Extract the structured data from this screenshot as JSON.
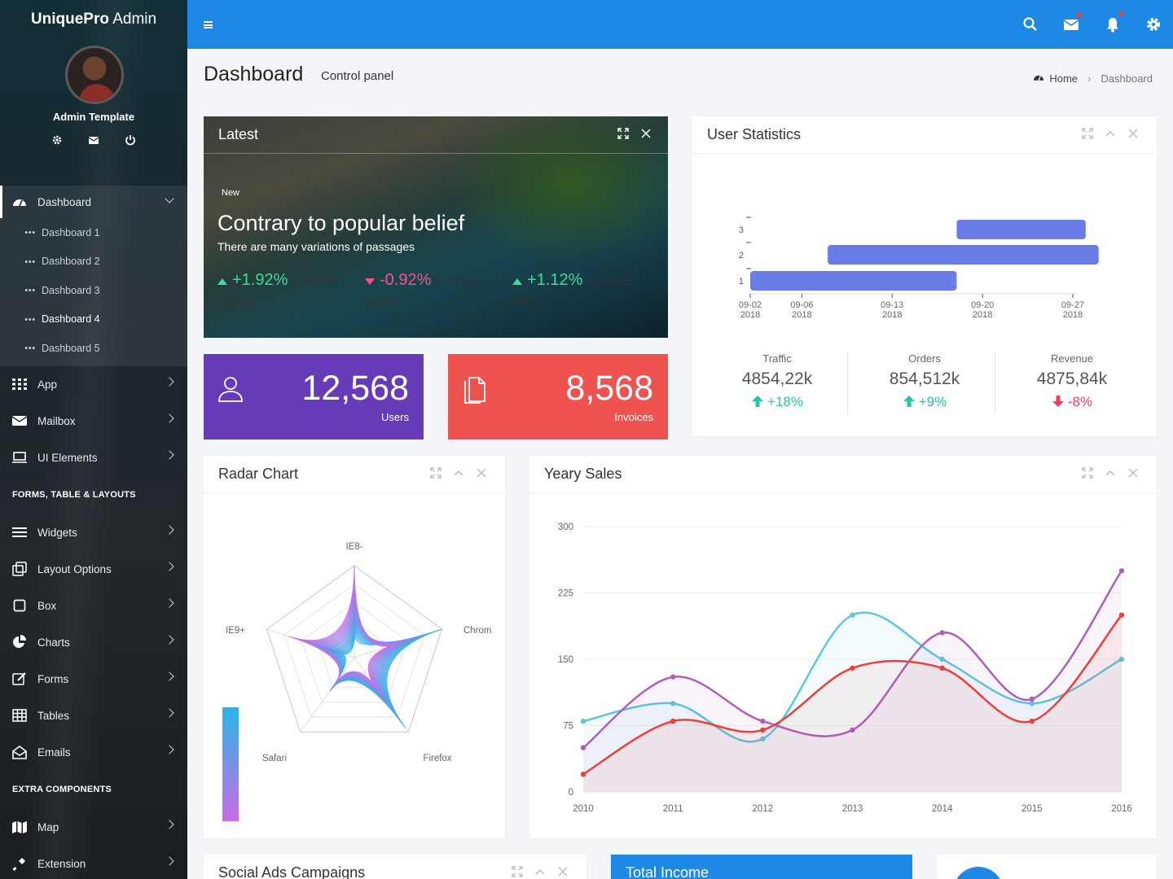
{
  "brand": {
    "bold": "UniquePro",
    "rest": " Admin"
  },
  "user": {
    "name": "Admin Template"
  },
  "sidebar": {
    "dashboard_label": "Dashboard",
    "dashboard_sub": [
      "Dashboard 1",
      "Dashboard 2",
      "Dashboard 3",
      "Dashboard 4",
      "Dashboard 5"
    ],
    "items_a": [
      "App",
      "Mailbox",
      "UI Elements"
    ],
    "section_1": "FORMS, TABLE & LAYOUTS",
    "items_b": [
      "Widgets",
      "Layout Options",
      "Box",
      "Charts",
      "Forms",
      "Tables",
      "Emails"
    ],
    "section_2": "EXTRA COMPONENTS",
    "items_c": [
      "Map",
      "Extension"
    ]
  },
  "header": {
    "title": "Dashboard",
    "subtitle": "Control panel",
    "crumb_home": "Home",
    "crumb_current": "Dashboard"
  },
  "latest": {
    "title": "Latest",
    "badge": "New",
    "headline": "Contrary to popular belief",
    "text": "There are many variations of passages",
    "stocks": [
      {
        "pct": "+1.92%",
        "value": "41,425.81",
        "name": "QWDR",
        "dir": "up"
      },
      {
        "pct": "-0.92%",
        "value": "54,425.81",
        "name": "WSDF",
        "dir": "down"
      },
      {
        "pct": "+1.12%",
        "value": "85,425.81",
        "name": "AERV",
        "dir": "up"
      }
    ]
  },
  "tiles": {
    "users": {
      "value": "12,568",
      "label": "Users",
      "color": "#673ab7"
    },
    "invoices": {
      "value": "8,568",
      "label": "Invoices",
      "color": "#ef5350"
    }
  },
  "user_stats": {
    "title": "User Statistics",
    "stats": [
      {
        "label": "Traffic",
        "value": "4854,22k",
        "delta": "+18%",
        "dir": "up"
      },
      {
        "label": "Orders",
        "value": "854,512k",
        "delta": "+9%",
        "dir": "up"
      },
      {
        "label": "Revenue",
        "value": "4875,84k",
        "delta": "-8%",
        "dir": "down"
      }
    ]
  },
  "radar": {
    "title": "Radar Chart"
  },
  "yearly": {
    "title": "Yeary Sales"
  },
  "bottom": {
    "social": "Social Ads Campaigns",
    "income": "Total Income"
  },
  "chart_data": [
    {
      "type": "bar",
      "orientation": "horizontal-range",
      "categories": [
        "1",
        "2",
        "3"
      ],
      "x_ticks": [
        [
          "09-02",
          "2018"
        ],
        [
          "09-06",
          "2018"
        ],
        [
          "09-13",
          "2018"
        ],
        [
          "09-20",
          "2018"
        ],
        [
          "09-27",
          "2018"
        ]
      ],
      "ranges": [
        [
          "2018-09-02",
          "2018-09-18"
        ],
        [
          "2018-09-08",
          "2018-09-29"
        ],
        [
          "2018-09-18",
          "2018-09-28"
        ]
      ],
      "color": "#6a7ce8"
    },
    {
      "type": "radar",
      "axes": [
        "IE8-",
        "Chrom",
        "Firefox",
        "Safari",
        "IE9+"
      ],
      "color_from": "#29b6e8",
      "color_to": "#c86de8"
    },
    {
      "type": "line",
      "x": [
        "2010",
        "2011",
        "2012",
        "2013",
        "2014",
        "2015",
        "2016"
      ],
      "yticks": [
        "0",
        "75",
        "150",
        "225",
        "300"
      ],
      "ylim": [
        0,
        300
      ],
      "series": [
        {
          "values": [
            80,
            100,
            60,
            200,
            150,
            100,
            150
          ],
          "color": "#5bc8dd"
        },
        {
          "values": [
            50,
            130,
            80,
            70,
            180,
            105,
            250
          ],
          "color": "#ae5fbb"
        },
        {
          "values": [
            20,
            80,
            70,
            140,
            140,
            80,
            200
          ],
          "color": "#e8413b"
        }
      ]
    }
  ]
}
